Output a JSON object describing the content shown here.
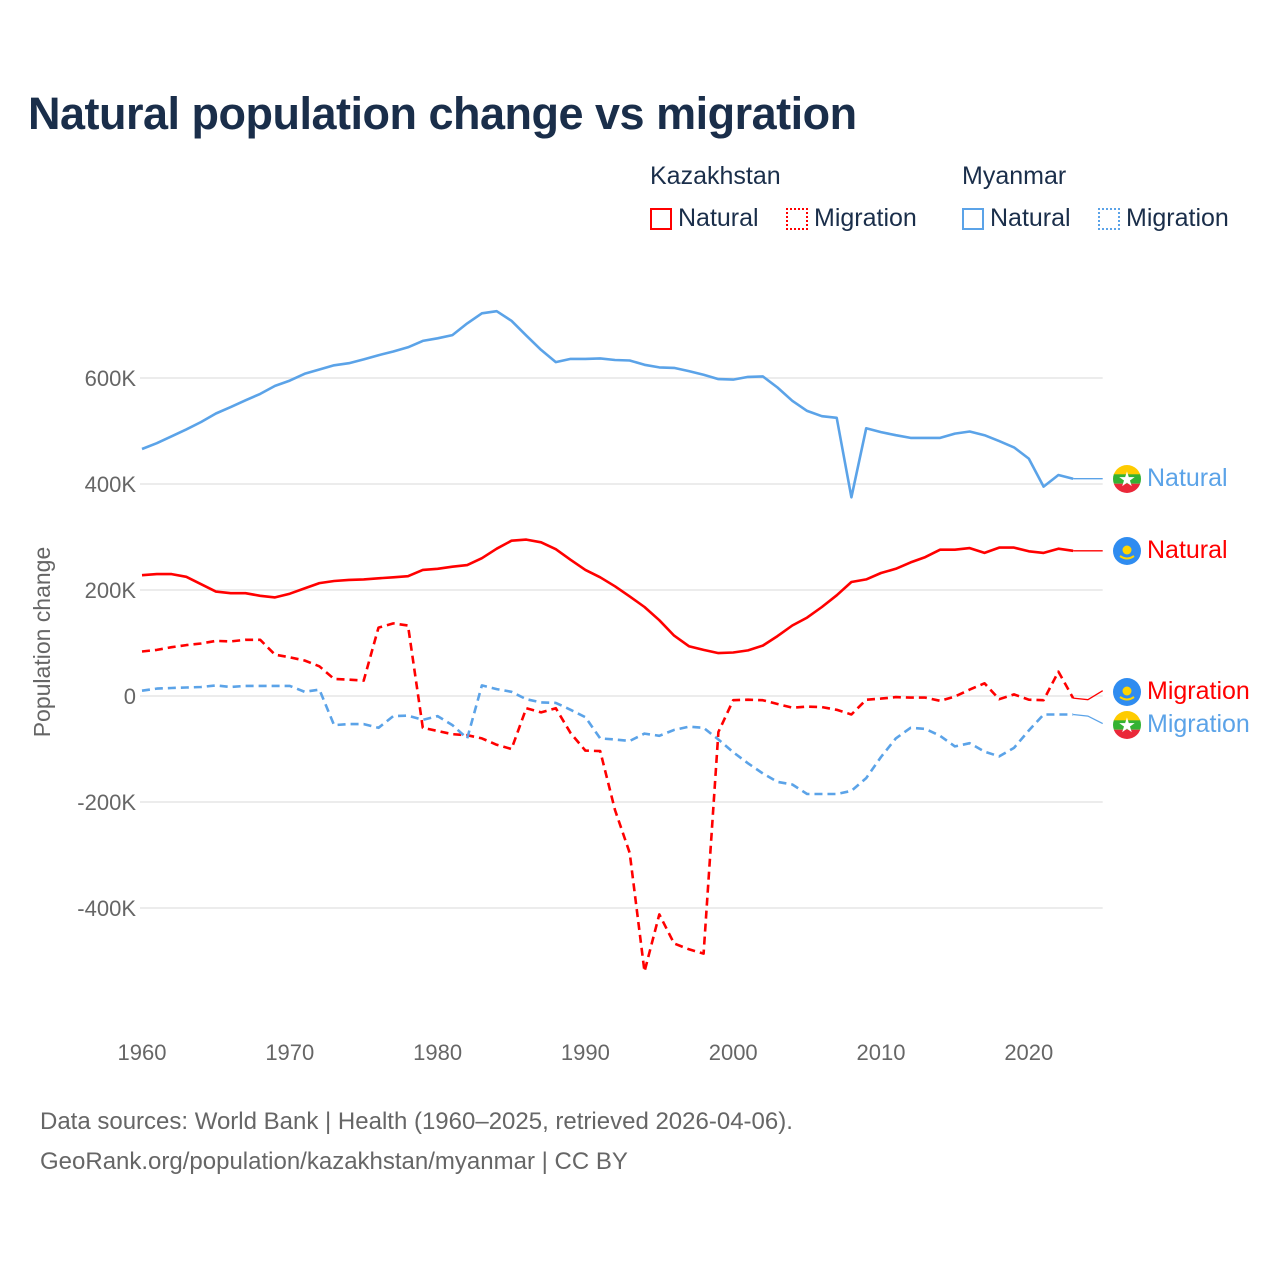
{
  "title": "Natural population change vs migration",
  "legend": {
    "groups": [
      {
        "name": "Kazakhstan",
        "items": [
          {
            "label": "Natural",
            "style": "solid"
          },
          {
            "label": "Migration",
            "style": "dotted"
          }
        ],
        "color": "#ff0000"
      },
      {
        "name": "Myanmar",
        "items": [
          {
            "label": "Natural",
            "style": "solid"
          },
          {
            "label": "Migration",
            "style": "dotted"
          }
        ],
        "color": "#5ba3e8"
      }
    ]
  },
  "footer": {
    "line1": "Data sources: World Bank | Health (1960–2025, retrieved 2026-04-06).",
    "line2": "GeoRank.org/population/kazakhstan/myanmar | CC BY"
  },
  "chart_data": {
    "type": "line",
    "title": "Natural population change vs migration",
    "xlabel": "",
    "ylabel": "Population change",
    "xlim": [
      1960,
      2025
    ],
    "ylim": [
      -560,
      760
    ],
    "y_ticks": [
      {
        "v": 600,
        "label": "600K"
      },
      {
        "v": 400,
        "label": "400K"
      },
      {
        "v": 200,
        "label": "200K"
      },
      {
        "v": 0,
        "label": "0"
      },
      {
        "v": -200,
        "label": "-200K"
      },
      {
        "v": -400,
        "label": "-400K"
      }
    ],
    "x_ticks": [
      1960,
      1970,
      1980,
      1990,
      2000,
      2010,
      2020
    ],
    "x_tick_labels": [
      "1960",
      "1970",
      "1980",
      "1990",
      "2000",
      "2010",
      "2020"
    ],
    "grid": true,
    "units": "thousands",
    "x_start": 1960,
    "series": [
      {
        "name": "Myanmar Natural",
        "end_label": "Natural",
        "color": "#5ba3e8",
        "dash": "solid",
        "flag": "myanmar",
        "values": [
          466,
          477,
          490,
          503,
          517,
          533,
          545,
          558,
          570,
          585,
          595,
          608,
          616,
          624,
          628,
          635,
          643,
          650,
          658,
          670,
          675,
          681,
          703,
          722,
          726,
          708,
          680,
          653,
          630,
          636,
          636,
          637,
          634,
          633,
          625,
          620,
          619,
          613,
          606,
          598,
          597,
          602,
          603,
          582,
          557,
          538,
          528,
          525,
          375,
          505,
          498,
          492,
          487,
          487,
          487,
          495,
          499,
          492,
          481,
          469,
          448,
          395,
          417,
          410,
          410,
          410
        ]
      },
      {
        "name": "Kazakhstan Natural",
        "end_label": "Natural",
        "color": "#ff0000",
        "dash": "solid",
        "flag": "kazakhstan",
        "values": [
          228,
          230,
          230,
          225,
          211,
          197,
          194,
          194,
          189,
          186,
          193,
          203,
          213,
          217,
          219,
          220,
          222,
          224,
          226,
          238,
          240,
          244,
          247,
          260,
          278,
          293,
          295,
          290,
          277,
          257,
          238,
          224,
          207,
          188,
          168,
          143,
          114,
          94,
          87,
          81,
          82,
          86,
          95,
          113,
          133,
          148,
          168,
          190,
          215,
          220,
          232,
          240,
          252,
          262,
          276,
          276,
          279,
          270,
          280,
          280,
          273,
          270,
          278,
          274,
          274,
          274
        ]
      },
      {
        "name": "Kazakhstan Migration",
        "end_label": "Migration",
        "color": "#ff0000",
        "dash": "dashed",
        "flag": "kazakhstan",
        "values": [
          84,
          87,
          92,
          96,
          99,
          104,
          103,
          106,
          106,
          78,
          73,
          67,
          56,
          32,
          31,
          29,
          129,
          137,
          133,
          -60,
          -66,
          -72,
          -74,
          -80,
          -92,
          -100,
          -23,
          -31,
          -23,
          -70,
          -103,
          -104,
          -215,
          -296,
          -520,
          -412,
          -467,
          -478,
          -486,
          -68,
          -8,
          -7,
          -8,
          -15,
          -22,
          -20,
          -21,
          -26,
          -35,
          -7,
          -5,
          -2,
          -3,
          -3,
          -9,
          -1,
          12,
          24,
          -6,
          3,
          -7,
          -8,
          46,
          -4,
          -7,
          10
        ]
      },
      {
        "name": "Myanmar Migration",
        "end_label": "Migration",
        "color": "#5ba3e8",
        "dash": "dashed",
        "flag": "myanmar",
        "values": [
          10,
          14,
          15,
          16,
          17,
          20,
          17,
          19,
          19,
          19,
          19,
          8,
          12,
          -55,
          -53,
          -53,
          -60,
          -38,
          -37,
          -45,
          -38,
          -55,
          -80,
          20,
          13,
          8,
          -6,
          -12,
          -13,
          -26,
          -40,
          -80,
          -82,
          -85,
          -71,
          -75,
          -64,
          -58,
          -60,
          -82,
          -106,
          -127,
          -146,
          -162,
          -167,
          -185,
          -185,
          -185,
          -179,
          -155,
          -115,
          -80,
          -60,
          -62,
          -75,
          -95,
          -89,
          -105,
          -114,
          -98,
          -65,
          -35,
          -35,
          -35,
          -38,
          -52
        ]
      }
    ]
  }
}
